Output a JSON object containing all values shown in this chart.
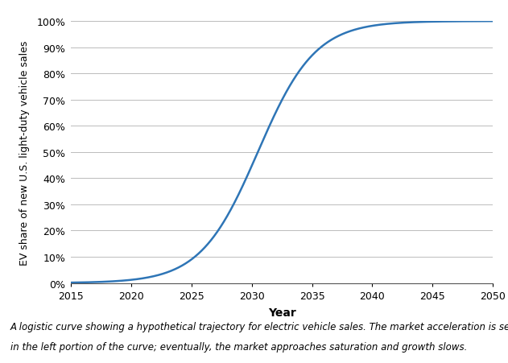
{
  "title": "",
  "xlabel": "Year",
  "ylabel": "EV share of new U.S. light-duty vehicle sales",
  "xlim": [
    2015,
    2050
  ],
  "ylim": [
    0.0,
    1.0
  ],
  "xticks": [
    2015,
    2020,
    2025,
    2030,
    2035,
    2040,
    2045,
    2050
  ],
  "yticks": [
    0.0,
    0.1,
    0.2,
    0.3,
    0.4,
    0.5,
    0.6,
    0.7,
    0.8,
    0.9,
    1.0
  ],
  "line_color": "#2e75b6",
  "line_width": 1.8,
  "logistic_midpoint": 2030.5,
  "logistic_steepness": 0.42,
  "caption_line1": "A logistic curve showing a hypothetical trajectory for electric vehicle sales. The market acceleration is seen",
  "caption_line2": "in the left portion of the curve; eventually, the market approaches saturation and growth slows.",
  "caption_fontsize": 8.5,
  "xlabel_fontsize": 10,
  "ylabel_fontsize": 9,
  "tick_fontsize": 9,
  "background_color": "#ffffff",
  "grid_color": "#bbbbbb"
}
